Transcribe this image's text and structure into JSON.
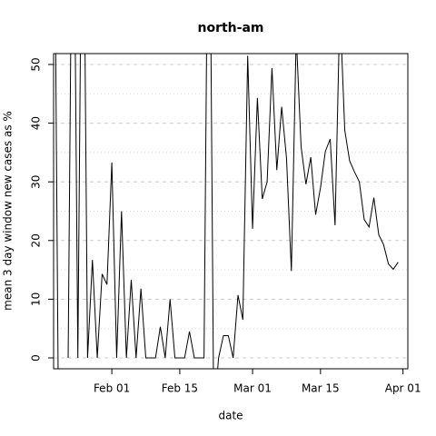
{
  "chart_data": {
    "type": "line",
    "title": "north-am",
    "x_label": "date",
    "y_label": "mean  3  day window new cases as %",
    "x": [
      "Jan 20",
      "Jan 21",
      "Jan 22",
      "Jan 23",
      "Jan 24",
      "Jan 25",
      "Jan 26",
      "Jan 27",
      "Jan 28",
      "Jan 29",
      "Jan 30",
      "Jan 31",
      "Feb 01",
      "Feb 02",
      "Feb 03",
      "Feb 04",
      "Feb 05",
      "Feb 06",
      "Feb 07",
      "Feb 08",
      "Feb 09",
      "Feb 10",
      "Feb 11",
      "Feb 12",
      "Feb 13",
      "Feb 14",
      "Feb 15",
      "Feb 16",
      "Feb 17",
      "Feb 18",
      "Feb 19",
      "Feb 20",
      "Feb 21",
      "Feb 22",
      "Feb 23",
      "Feb 24",
      "Feb 25",
      "Feb 26",
      "Feb 27",
      "Feb 28",
      "Feb 29",
      "Mar 01",
      "Mar 02",
      "Mar 03",
      "Mar 04",
      "Mar 05",
      "Mar 06",
      "Mar 07",
      "Mar 08",
      "Mar 09",
      "Mar 10",
      "Mar 11",
      "Mar 12",
      "Mar 13",
      "Mar 14",
      "Mar 15",
      "Mar 16",
      "Mar 17",
      "Mar 18",
      "Mar 19",
      "Mar 20",
      "Mar 21",
      "Mar 22",
      "Mar 23",
      "Mar 24",
      "Mar 25",
      "Mar 26",
      "Mar 27",
      "Mar 28",
      "Mar 29",
      "Mar 30",
      "Mar 31"
    ],
    "series": [
      {
        "name": "north-am",
        "color": "#000000",
        "values": [
          100,
          -10,
          null,
          0,
          100,
          0,
          100,
          0,
          16.7,
          0,
          14.3,
          12.5,
          33.3,
          0,
          25,
          0,
          13.3,
          0,
          11.8,
          0,
          0,
          0,
          5.3,
          0,
          10,
          0,
          0,
          0,
          4.5,
          0,
          0,
          0,
          100,
          -10,
          0,
          3.8,
          3.8,
          0,
          10.7,
          6.5,
          51.5,
          22,
          44.3,
          27.1,
          30,
          49.4,
          32,
          42.8,
          34,
          14.8,
          55,
          36,
          29.6,
          34.2,
          24.4,
          29,
          35.2,
          37.3,
          22.6,
          60,
          38.8,
          33.6,
          31.7,
          30,
          23.6,
          22.3,
          27.3,
          21,
          19.3,
          16,
          15.1,
          16.3
        ]
      }
    ],
    "xlim": [
      "Jan 20",
      "Apr 02"
    ],
    "xticks": [
      "Feb 01",
      "Feb 15",
      "Mar 01",
      "Mar 15",
      "Apr 01"
    ],
    "ylim": [
      -1.86,
      51.86
    ],
    "yticks": [
      0,
      10,
      20,
      30,
      40,
      50
    ],
    "minor_grid": [
      5,
      15,
      25,
      35,
      45
    ],
    "grid": true
  }
}
